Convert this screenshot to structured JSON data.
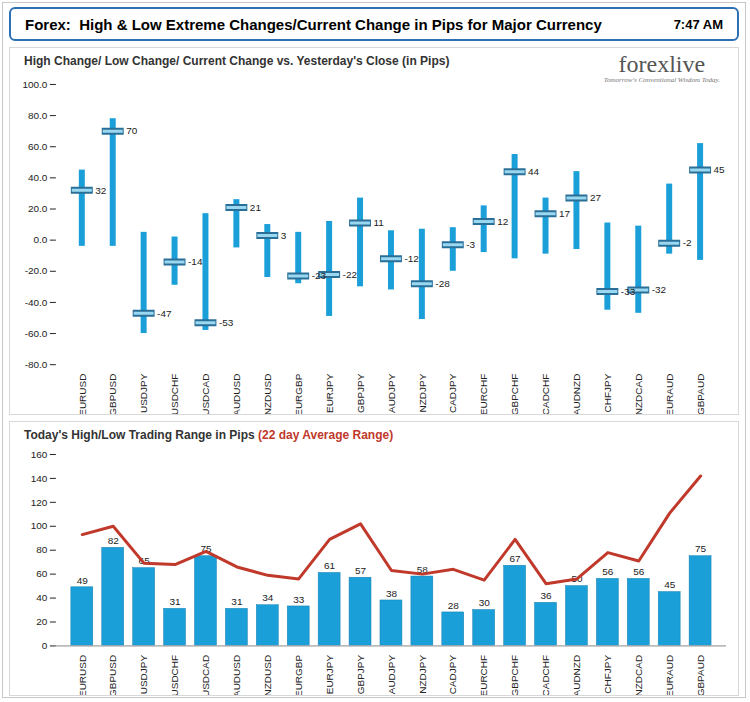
{
  "header": {
    "title": "Forex:  High & Low Extreme Changes/Current Change in Pips for Major Currency",
    "time": "7:47 AM",
    "logo": "forexlive",
    "tagline": "Tomorrow's Conventional Wisdom Today."
  },
  "chart_data": [
    {
      "type": "range",
      "title": "High Change/ Low Change/ Current Change vs. Yesterday's Close (in Pips)",
      "categories": [
        "EURUSD",
        "GBPUSD",
        "USDJPY",
        "USDCHF",
        "USDCAD",
        "AUDUSD",
        "NZDUSD",
        "EURGBP",
        "EURJPY",
        "GBPJPY",
        "AUDJPY",
        "NZDJPY",
        "CADJPY",
        "EURCHF",
        "GBPCHF",
        "CADCHF",
        "AUDNZD",
        "CHFJPY",
        "NZDCAD",
        "EURAUD",
        "GBPAUD"
      ],
      "values": [
        32,
        70,
        -47,
        -14,
        -53,
        21,
        3,
        -23,
        -22,
        11,
        -12,
        -28,
        -3,
        12,
        44,
        17,
        27,
        -33,
        -32,
        -2,
        45
      ],
      "high": [
        45,
        78,
        5,
        2,
        17,
        26,
        10,
        5,
        12,
        27,
        6,
        7,
        8,
        22,
        55,
        27,
        44,
        11,
        9,
        36,
        62
      ],
      "low": [
        -4,
        -4,
        -60,
        -29,
        -58,
        -5,
        -24,
        -28,
        -49,
        -30,
        -32,
        -51,
        -20,
        -8,
        -12,
        -9,
        -6,
        -45,
        -47,
        -9,
        -13
      ],
      "color": "#1a9fd9",
      "marker": "dash",
      "data_labels": true,
      "grid": false,
      "ylim": [
        -80,
        100
      ],
      "yticks": [
        {
          "value": -80,
          "label": "-80.0"
        },
        {
          "value": -60,
          "label": "-60.0"
        },
        {
          "value": -40,
          "label": "-40.0"
        },
        {
          "value": -20,
          "label": "-20.0"
        },
        {
          "value": 0,
          "label": "0.0"
        },
        {
          "value": 20,
          "label": "20.0"
        },
        {
          "value": 40,
          "label": "40.0"
        },
        {
          "value": 60,
          "label": "60.0"
        },
        {
          "value": 80,
          "label": "80.0"
        },
        {
          "value": 100,
          "label": "100.0"
        }
      ]
    },
    {
      "type": "bar",
      "categories": [
        "EURUSD",
        "GBPUSD",
        "USDJPY",
        "USDCHF",
        "USDCAD",
        "AUDUSD",
        "NZDUSD",
        "EURGBP",
        "EURJPY",
        "GBPJPY",
        "AUDJPY",
        "NZDJPY",
        "CADJPY",
        "EURCHF",
        "GBPCHF",
        "CADCHF",
        "AUDNZD",
        "CHFJPY",
        "NZDCAD",
        "EURAUD",
        "GBPAUD"
      ],
      "series": [
        {
          "name": "Today's High/Low Trading Range in Pips",
          "type": "bar",
          "color": "#1a9fd9",
          "values": [
            49,
            82,
            65,
            31,
            75,
            31,
            34,
            33,
            61,
            57,
            38,
            58,
            28,
            30,
            67,
            36,
            50,
            56,
            56,
            45,
            75
          ]
        },
        {
          "name": "(22 day Average Range)",
          "type": "line",
          "color": "#c0392b",
          "values": [
            93,
            100,
            69,
            68,
            79,
            66,
            59,
            56,
            89,
            102,
            63,
            60,
            64,
            55,
            89,
            52,
            56,
            78,
            71,
            111,
            142
          ]
        }
      ],
      "data_labels": true,
      "grid": false,
      "ylim": [
        0,
        160
      ],
      "yticks": [
        0,
        20,
        40,
        60,
        80,
        100,
        120,
        140,
        160
      ]
    }
  ]
}
